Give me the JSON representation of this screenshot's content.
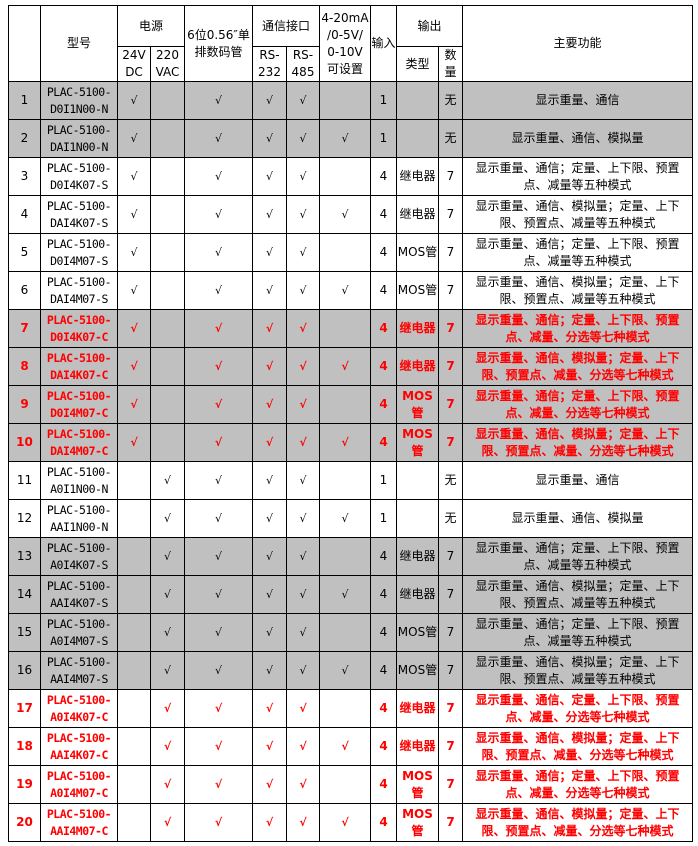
{
  "header": {
    "model": "型号",
    "power": "电源",
    "v24": "24V DC",
    "v220": "220 VAC",
    "display": "6位0.56″单排数码管",
    "comm": "通信接口",
    "rs232": "RS-232",
    "rs485": "RS-485",
    "analog": "4-20mA /0-5V/ 0-10V 可设置",
    "input": "输入",
    "output": "输出",
    "out_type": "类型",
    "out_qty": "数量",
    "function": "主要功能"
  },
  "check": "√",
  "rows": [
    {
      "no": "1",
      "model": "PLAC-5100-D0I1N00-N",
      "dc": true,
      "ac": false,
      "analog": false,
      "input": "1",
      "type": "",
      "qty": "无",
      "function": "显示重量、通信",
      "style": "gray"
    },
    {
      "no": "2",
      "model": "PLAC-5100-DAI1N00-N",
      "dc": true,
      "ac": false,
      "analog": true,
      "input": "1",
      "type": "",
      "qty": "无",
      "function": "显示重量、通信、模拟量",
      "style": "gray"
    },
    {
      "no": "3",
      "model": "PLAC-5100-D0I4K07-S",
      "dc": true,
      "ac": false,
      "analog": false,
      "input": "4",
      "type": "继电器",
      "qty": "7",
      "function": "显示重量、通信；定量、上下限、预置点、减量等五种模式",
      "style": "white"
    },
    {
      "no": "4",
      "model": "PLAC-5100-DAI4K07-S",
      "dc": true,
      "ac": false,
      "analog": true,
      "input": "4",
      "type": "继电器",
      "qty": "7",
      "function": "显示重量、通信、模拟量；定量、上下限、预置点、减量等五种模式",
      "style": "white"
    },
    {
      "no": "5",
      "model": "PLAC-5100-D0I4M07-S",
      "dc": true,
      "ac": false,
      "analog": false,
      "input": "4",
      "type": "MOS管",
      "qty": "7",
      "function": "显示重量、通信；定量、上下限、预置点、减量等五种模式",
      "style": "white"
    },
    {
      "no": "6",
      "model": "PLAC-5100-DAI4M07-S",
      "dc": true,
      "ac": false,
      "analog": true,
      "input": "4",
      "type": "MOS管",
      "qty": "7",
      "function": "显示重量、通信、模拟量；定量、上下限、预置点、减量等五种模式",
      "style": "white"
    },
    {
      "no": "7",
      "model": "PLAC-5100-D0I4K07-C",
      "dc": true,
      "ac": false,
      "analog": false,
      "input": "4",
      "type": "继电器",
      "qty": "7",
      "function": "显示重量、通信；定量、上下限、预置点、减量、分选等七种模式",
      "style": "gray-red"
    },
    {
      "no": "8",
      "model": "PLAC-5100-DAI4K07-C",
      "dc": true,
      "ac": false,
      "analog": true,
      "input": "4",
      "type": "继电器",
      "qty": "7",
      "function": "显示重量、通信、模拟量；定量、上下限、预置点、减量、分选等七种模式",
      "style": "gray-red"
    },
    {
      "no": "9",
      "model": "PLAC-5100-D0I4M07-C",
      "dc": true,
      "ac": false,
      "analog": false,
      "input": "4",
      "type": "MOS管",
      "qty": "7",
      "function": "显示重量、通信；定量、上下限、预置点、减量、分选等七种模式",
      "style": "gray-red"
    },
    {
      "no": "10",
      "model": "PLAC-5100-DAI4M07-C",
      "dc": true,
      "ac": false,
      "analog": true,
      "input": "4",
      "type": "MOS管",
      "qty": "7",
      "function": "显示重量、通信、模拟量；定量、上下限、预置点、减量、分选等七种模式",
      "style": "gray-red"
    },
    {
      "no": "11",
      "model": "PLAC-5100-A0I1N00-N",
      "dc": false,
      "ac": true,
      "analog": false,
      "input": "1",
      "type": "",
      "qty": "无",
      "function": "显示重量、通信",
      "style": "white"
    },
    {
      "no": "12",
      "model": "PLAC-5100-AAI1N00-N",
      "dc": false,
      "ac": true,
      "analog": true,
      "input": "1",
      "type": "",
      "qty": "无",
      "function": "显示重量、通信、模拟量",
      "style": "white"
    },
    {
      "no": "13",
      "model": "PLAC-5100-A0I4K07-S",
      "dc": false,
      "ac": true,
      "analog": false,
      "input": "4",
      "type": "继电器",
      "qty": "7",
      "function": "显示重量、通信；定量、上下限、预置点、减量等五种模式",
      "style": "gray"
    },
    {
      "no": "14",
      "model": "PLAC-5100-AAI4K07-S",
      "dc": false,
      "ac": true,
      "analog": true,
      "input": "4",
      "type": "继电器",
      "qty": "7",
      "function": "显示重量、通信、模拟量；定量、上下限、预置点、减量等五种模式",
      "style": "gray"
    },
    {
      "no": "15",
      "model": "PLAC-5100-A0I4M07-S",
      "dc": false,
      "ac": true,
      "analog": false,
      "input": "4",
      "type": "MOS管",
      "qty": "7",
      "function": "显示重量、通信；定量、上下限、预置点、减量等五种模式",
      "style": "gray"
    },
    {
      "no": "16",
      "model": "PLAC-5100-AAI4M07-S",
      "dc": false,
      "ac": true,
      "analog": true,
      "input": "4",
      "type": "MOS管",
      "qty": "7",
      "function": "显示重量、通信、模拟量；定量、上下限、预置点、减量等五种模式",
      "style": "gray"
    },
    {
      "no": "17",
      "model": "PLAC-5100-A0I4K07-C",
      "dc": false,
      "ac": true,
      "analog": false,
      "input": "4",
      "type": "继电器",
      "qty": "7",
      "function": "显示重量、通信、定量、上下限、预置点、减量、分选等七种模式",
      "style": "white-red"
    },
    {
      "no": "18",
      "model": "PLAC-5100-AAI4K07-C",
      "dc": false,
      "ac": true,
      "analog": true,
      "input": "4",
      "type": "继电器",
      "qty": "7",
      "function": "显示重量、通信、模拟量；定量、上下限、预置点、减量、分选等七种模式",
      "style": "white-red"
    },
    {
      "no": "19",
      "model": "PLAC-5100-A0I4M07-C",
      "dc": false,
      "ac": true,
      "analog": false,
      "input": "4",
      "type": "MOS管",
      "qty": "7",
      "function": "显示重量、通信；定量、上下限、预置点、减量、分选等七种模式",
      "style": "white-red"
    },
    {
      "no": "20",
      "model": "PLAC-5100-AAI4M07-C",
      "dc": false,
      "ac": true,
      "analog": true,
      "input": "4",
      "type": "MOS管",
      "qty": "7",
      "function": "显示重量、通信、模拟量；定量、上下限、预置点、减量、分选等七种模式",
      "style": "white-red"
    }
  ]
}
